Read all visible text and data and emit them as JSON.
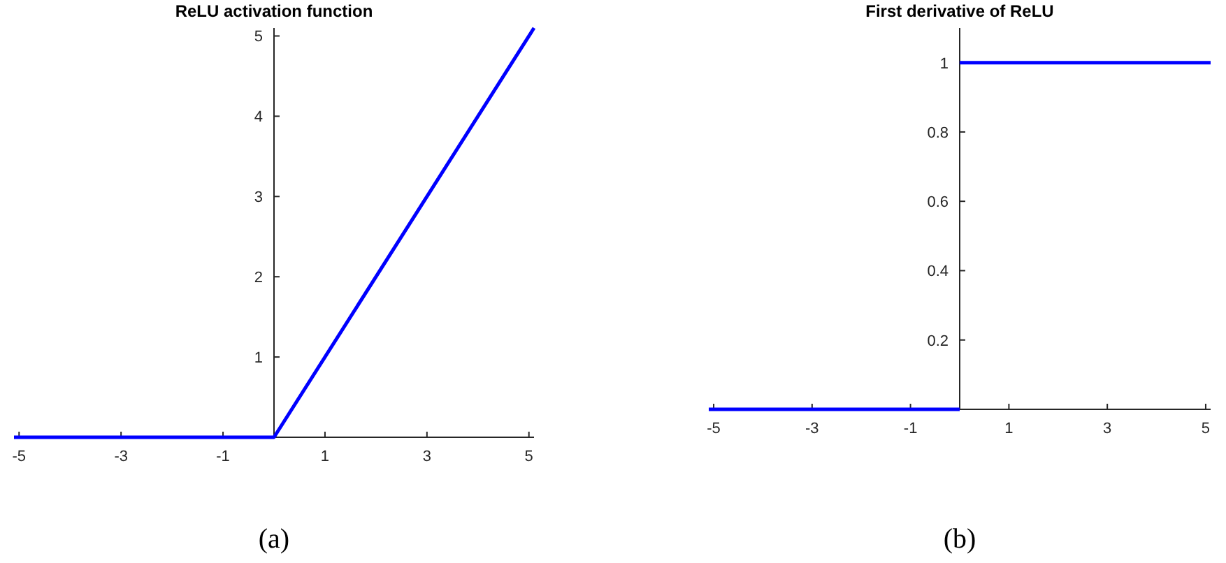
{
  "chart_data": [
    {
      "type": "line",
      "title": "ReLU activation function",
      "x": [
        -5.1,
        0,
        5.1
      ],
      "series": [
        {
          "color": "#0000ff",
          "values": [
            0,
            0,
            5.1
          ]
        }
      ],
      "xlim": [
        -5.1,
        5.1
      ],
      "ylim": [
        0,
        5.1
      ],
      "xticks": [
        -5,
        -3,
        -1,
        1,
        3,
        5
      ],
      "yticks": [
        1,
        2,
        3,
        4,
        5
      ],
      "annotations": [
        "(a)"
      ]
    },
    {
      "type": "line",
      "title": "First derivative of ReLU",
      "series": [
        {
          "color": "#0000ff",
          "x": [
            -5.1,
            0
          ],
          "values": [
            0,
            0
          ]
        },
        {
          "color": "#0000ff",
          "x": [
            0,
            5.1
          ],
          "values": [
            1,
            1
          ]
        }
      ],
      "xlim": [
        -5.1,
        5.1
      ],
      "ylim": [
        0,
        1.1
      ],
      "xticks": [
        -5,
        -3,
        -1,
        1,
        3,
        5
      ],
      "yticks": [
        0.2,
        0.4,
        0.6,
        0.8,
        1
      ],
      "annotations": [
        "(b)"
      ]
    }
  ]
}
